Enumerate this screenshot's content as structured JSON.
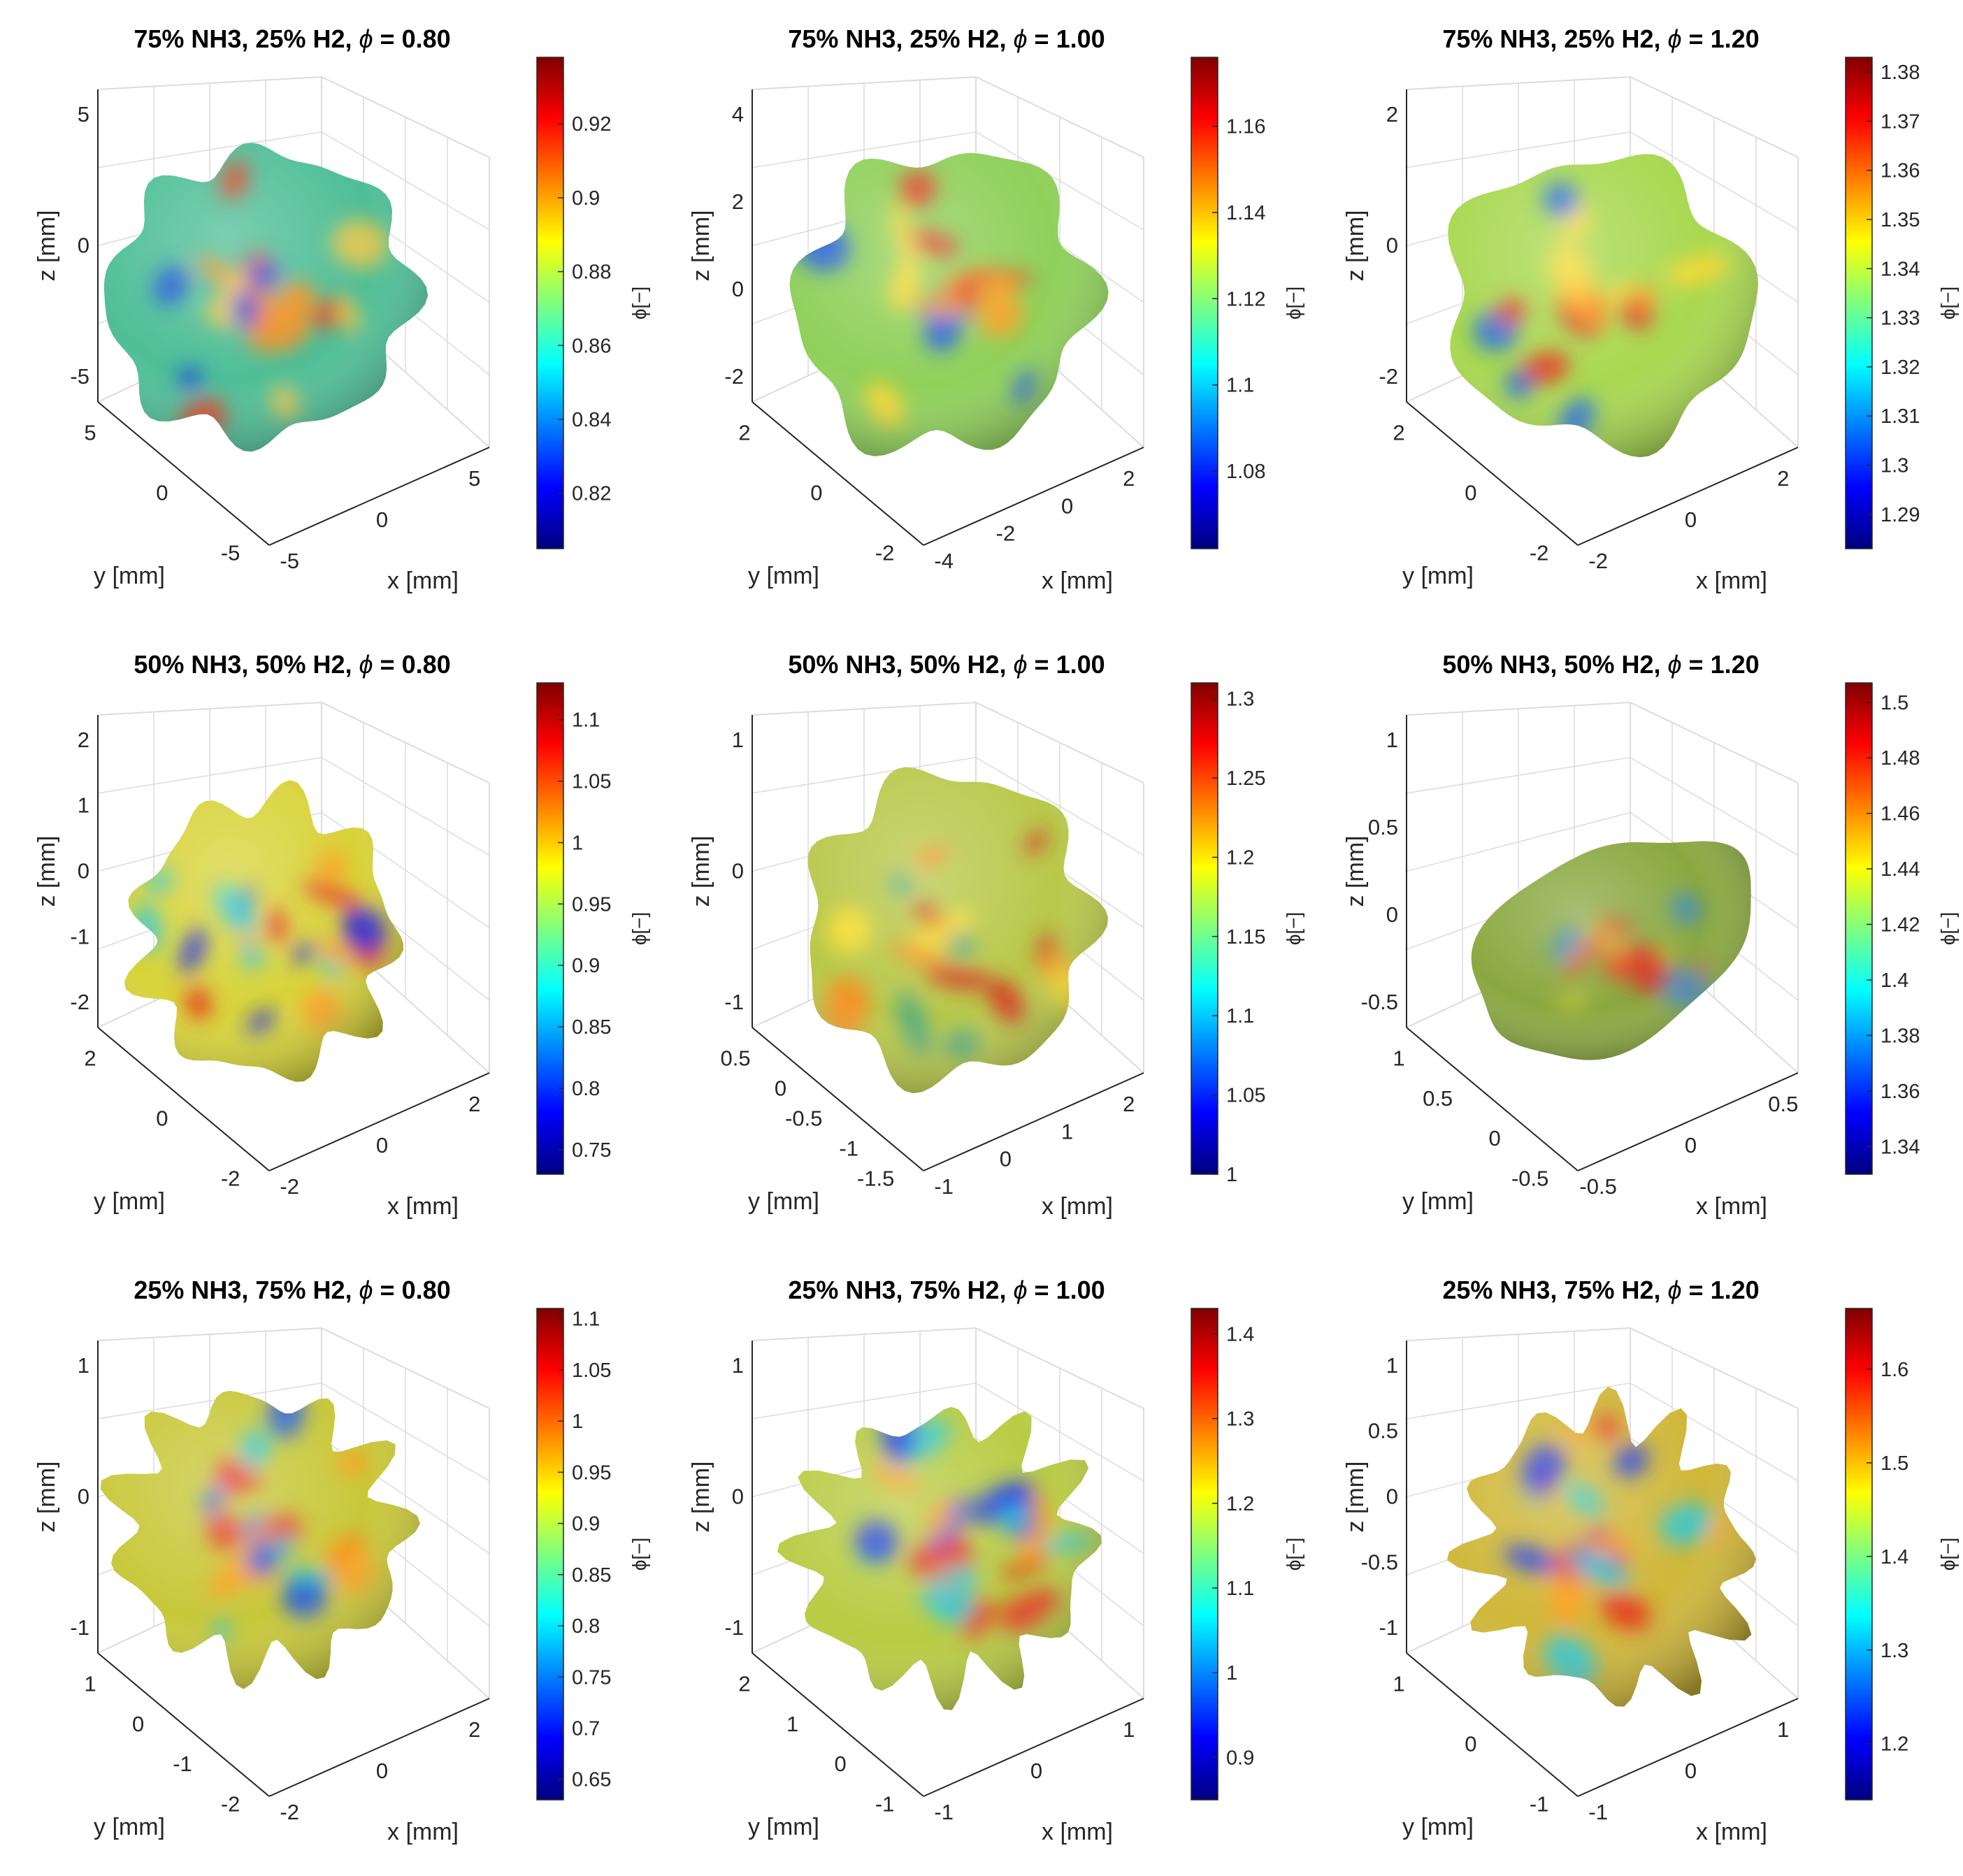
{
  "figure": {
    "colormap": [
      "#00007f",
      "#0000ff",
      "#007fff",
      "#00ffff",
      "#7fff7f",
      "#ffff00",
      "#ff7f00",
      "#ff0000",
      "#7f0000"
    ],
    "axis_color": "#262626",
    "grid_color": "#dcdcdc"
  },
  "chart_data": [
    {
      "type": "surface3d",
      "title": "75% NH3, 25% H2, ϕ = 0.80",
      "title_parts": [
        "75% NH3, 25% H2, ",
        "ϕ",
        " = 0.80"
      ],
      "xlabel": "x [mm]",
      "ylabel": "y [mm]",
      "zlabel": "z [mm]",
      "xticks": [
        "-5",
        "0",
        "5"
      ],
      "yticks": [
        "5",
        "0",
        "-5"
      ],
      "zticks": [
        "5",
        "0",
        "-5"
      ],
      "colorbar": {
        "label": "ϕ[−]",
        "ticks": [
          "0.92",
          "0.9",
          "0.88",
          "0.86",
          "0.84",
          "0.82"
        ],
        "range": [
          0.805,
          0.938
        ]
      },
      "blob": {
        "center_frac": [
          0.36,
          0.49
        ],
        "radius_frac": 0.3,
        "bumps": 8,
        "amplitude": 0.07,
        "seed": 11,
        "base_color": "#4fbf98",
        "accent_colors": [
          "#e63a1e",
          "#f0c84a",
          "#1a4de0",
          "#ff8c1a"
        ]
      }
    },
    {
      "type": "surface3d",
      "title": "75% NH3, 25% H2, ϕ = 1.00",
      "title_parts": [
        "75% NH3, 25% H2, ",
        "ϕ",
        " = 1.00"
      ],
      "xlabel": "x [mm]",
      "ylabel": "y [mm]",
      "zlabel": "z [mm]",
      "xticks": [
        "-4",
        "-2",
        "0",
        "2"
      ],
      "yticks": [
        "2",
        "0",
        "-2"
      ],
      "zticks": [
        "4",
        "2",
        "0",
        "-2"
      ],
      "colorbar": {
        "label": "ϕ[−]",
        "ticks": [
          "1.16",
          "1.14",
          "1.12",
          "1.1",
          "1.08"
        ],
        "range": [
          1.062,
          1.176
        ]
      },
      "blob": {
        "center_frac": [
          0.42,
          0.5
        ],
        "radius_frac": 0.3,
        "bumps": 6,
        "amplitude": 0.09,
        "seed": 23,
        "base_color": "#8fd05a",
        "accent_colors": [
          "#e8331c",
          "#ffd82e",
          "#1c5ae8",
          "#ff9f1c"
        ]
      }
    },
    {
      "type": "surface3d",
      "title": "75% NH3, 25% H2, ϕ = 1.20",
      "title_parts": [
        "75% NH3, 25% H2, ",
        "ϕ",
        " = 1.20"
      ],
      "xlabel": "x [mm]",
      "ylabel": "y [mm]",
      "zlabel": "z [mm]",
      "xticks": [
        "-2",
        "0",
        "2"
      ],
      "yticks": [
        "2",
        "0",
        "-2"
      ],
      "zticks": [
        "2",
        "0",
        "-2"
      ],
      "colorbar": {
        "label": "ϕ[−]",
        "ticks": [
          "1.38",
          "1.37",
          "1.36",
          "1.35",
          "1.34",
          "1.33",
          "1.32",
          "1.31",
          "1.3",
          "1.29"
        ],
        "range": [
          1.283,
          1.383
        ]
      },
      "blob": {
        "center_frac": [
          0.42,
          0.5
        ],
        "radius_frac": 0.3,
        "bumps": 5,
        "amplitude": 0.08,
        "seed": 37,
        "base_color": "#a8d850",
        "accent_colors": [
          "#e8331c",
          "#ffd82e",
          "#1c6ae8",
          "#ff9f1c"
        ]
      }
    },
    {
      "type": "surface3d",
      "title": "50% NH3, 50% H2, ϕ = 0.80",
      "title_parts": [
        "50% NH3, 50% H2, ",
        "ϕ",
        " = 0.80"
      ],
      "xlabel": "x [mm]",
      "ylabel": "y [mm]",
      "zlabel": "z [mm]",
      "xticks": [
        "-2",
        "0",
        "2"
      ],
      "yticks": [
        "2",
        "0",
        "-2"
      ],
      "zticks": [
        "2",
        "1",
        "0",
        "-1",
        "-2"
      ],
      "colorbar": {
        "label": "ϕ[−]",
        "ticks": [
          "1.1",
          "1.05",
          "1",
          "0.95",
          "0.9",
          "0.85",
          "0.8",
          "0.75"
        ],
        "range": [
          0.73,
          1.13
        ]
      },
      "blob": {
        "center_frac": [
          0.37,
          0.52
        ],
        "radius_frac": 0.27,
        "bumps": 9,
        "amplitude": 0.1,
        "seed": 51,
        "base_color": "#d8d43a",
        "accent_colors": [
          "#e8331c",
          "#2ac8d8",
          "#1c2ae8",
          "#ff9f1c"
        ]
      }
    },
    {
      "type": "surface3d",
      "title": "50% NH3, 50% H2, ϕ = 1.00",
      "title_parts": [
        "50% NH3, 50% H2, ",
        "ϕ",
        " = 1.00"
      ],
      "xlabel": "x [mm]",
      "ylabel": "y [mm]",
      "zlabel": "z [mm]",
      "xticks": [
        "-1",
        "0",
        "1",
        "2"
      ],
      "yticks": [
        "0.5",
        "0",
        "-0.5",
        "-1",
        "-1.5"
      ],
      "zticks": [
        "1",
        "0",
        "-1"
      ],
      "colorbar": {
        "label": "ϕ[−]",
        "ticks": [
          "1.3",
          "1.25",
          "1.2",
          "1.15",
          "1.1",
          "1.05",
          "1"
        ],
        "range": [
          1.0,
          1.31
        ]
      },
      "blob": {
        "center_frac": [
          0.43,
          0.5
        ],
        "radius_frac": 0.3,
        "bumps": 7,
        "amplitude": 0.08,
        "seed": 67,
        "base_color": "#b8c84a",
        "accent_colors": [
          "#d82a1c",
          "#ffe02e",
          "#4aa888",
          "#ff8a1c"
        ]
      }
    },
    {
      "type": "surface3d",
      "title": "50% NH3, 50% H2, ϕ = 1.20",
      "title_parts": [
        "50% NH3, 50% H2, ",
        "ϕ",
        " = 1.20"
      ],
      "xlabel": "x [mm]",
      "ylabel": "y [mm]",
      "zlabel": "z [mm]",
      "xticks": [
        "-0.5",
        "0",
        "0.5"
      ],
      "yticks": [
        "1",
        "0.5",
        "0",
        "-0.5"
      ],
      "zticks": [
        "1",
        "0.5",
        "0",
        "-0.5"
      ],
      "colorbar": {
        "label": "ϕ[−]",
        "ticks": [
          "1.5",
          "1.48",
          "1.46",
          "1.44",
          "1.42",
          "1.4",
          "1.38",
          "1.36",
          "1.34"
        ],
        "range": [
          1.33,
          1.507
        ]
      },
      "blob": {
        "center_frac": [
          0.45,
          0.54
        ],
        "radius_frac": 0.27,
        "bumps": 3,
        "amplitude": 0.05,
        "seed": 79,
        "base_color": "#8aa840",
        "accent_colors": [
          "#d82a1c",
          "#3a8ac8",
          "#c8c83a",
          "#e85a1c"
        ],
        "stretch": [
          1.15,
          0.72
        ],
        "rotate": -0.55
      }
    },
    {
      "type": "surface3d",
      "title": "25% NH3, 75% H2, ϕ = 0.80",
      "title_parts": [
        "25% NH3, 75% H2, ",
        "ϕ",
        " = 0.80"
      ],
      "xlabel": "x [mm]",
      "ylabel": "y [mm]",
      "zlabel": "z [mm]",
      "xticks": [
        "-2",
        "0",
        "2"
      ],
      "yticks": [
        "1",
        "0",
        "-1",
        "-2"
      ],
      "zticks": [
        "1",
        "0",
        "-1"
      ],
      "colorbar": {
        "label": "ϕ[−]",
        "ticks": [
          "1.1",
          "1.05",
          "1",
          "0.95",
          "0.9",
          "0.85",
          "0.8",
          "0.75",
          "0.7",
          "0.65"
        ],
        "range": [
          0.63,
          1.11
        ]
      },
      "blob": {
        "center_frac": [
          0.36,
          0.46
        ],
        "radius_frac": 0.28,
        "bumps": 11,
        "amplitude": 0.12,
        "seed": 91,
        "base_color": "#c8c83a",
        "accent_colors": [
          "#e8331c",
          "#2ac8d8",
          "#1c5ae8",
          "#ff9f1c"
        ]
      }
    },
    {
      "type": "surface3d",
      "title": "25% NH3, 75% H2, ϕ = 1.00",
      "title_parts": [
        "25% NH3, 75% H2, ",
        "ϕ",
        " = 1.00"
      ],
      "xlabel": "x [mm]",
      "ylabel": "y [mm]",
      "zlabel": "z [mm]",
      "xticks": [
        "-1",
        "0",
        "1"
      ],
      "yticks": [
        "2",
        "1",
        "0",
        "-1"
      ],
      "zticks": [
        "1",
        "0",
        "-1"
      ],
      "colorbar": {
        "label": "ϕ[−]",
        "ticks": [
          "1.4",
          "1.3",
          "1.2",
          "1.1",
          "1",
          "0.9"
        ],
        "range": [
          0.85,
          1.43
        ]
      },
      "blob": {
        "center_frac": [
          0.42,
          0.5
        ],
        "radius_frac": 0.28,
        "bumps": 12,
        "amplitude": 0.13,
        "seed": 103,
        "base_color": "#b8cc44",
        "accent_colors": [
          "#e8331c",
          "#2ac8d8",
          "#1c3ae8",
          "#ff9f1c"
        ]
      }
    },
    {
      "type": "surface3d",
      "title": "25% NH3, 75% H2, ϕ = 1.20",
      "title_parts": [
        "25% NH3, 75% H2, ",
        "ϕ",
        " = 1.20"
      ],
      "xlabel": "x [mm]",
      "ylabel": "y [mm]",
      "zlabel": "z [mm]",
      "xticks": [
        "-1",
        "0",
        "1"
      ],
      "yticks": [
        "1",
        "0",
        "-1"
      ],
      "zticks": [
        "1",
        "0.5",
        "0",
        "-0.5",
        "-1"
      ],
      "colorbar": {
        "label": "ϕ[−]",
        "ticks": [
          "1.6",
          "1.5",
          "1.4",
          "1.3",
          "1.2"
        ],
        "range": [
          1.14,
          1.665
        ]
      },
      "blob": {
        "center_frac": [
          0.44,
          0.5
        ],
        "radius_frac": 0.28,
        "bumps": 12,
        "amplitude": 0.13,
        "seed": 117,
        "base_color": "#d0b83a",
        "accent_colors": [
          "#e8331c",
          "#2ac8d8",
          "#1c3ae8",
          "#ffa01c"
        ]
      }
    }
  ]
}
